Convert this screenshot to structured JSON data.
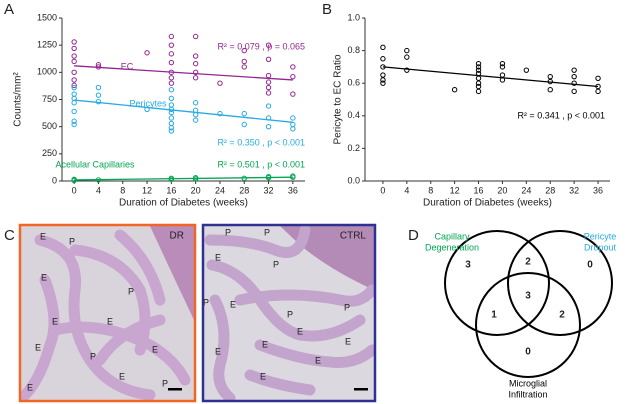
{
  "panels": [
    "A",
    "B",
    "C",
    "D"
  ],
  "chart_data": [
    {
      "type": "scatter",
      "xlabel": "Duration of Diabetes (weeks)",
      "ylabel": "Counts/mm²",
      "xlim": [
        -2,
        38
      ],
      "ylim": [
        0,
        1500
      ],
      "xticks": [
        0,
        4,
        8,
        12,
        16,
        20,
        24,
        28,
        32,
        36
      ],
      "yticks": [
        0,
        250,
        500,
        750,
        1000,
        1250,
        1500
      ],
      "series": [
        {
          "name": "EC",
          "color": "#92278f",
          "stat": "R² = 0.079 , p = 0.065",
          "x": [
            0,
            0,
            0,
            0,
            0,
            0,
            0,
            4,
            4,
            12,
            16,
            16,
            16,
            16,
            16,
            16,
            16,
            20,
            20,
            20,
            20,
            20,
            24,
            28,
            28,
            28,
            32,
            32,
            32,
            32,
            32,
            32,
            36,
            36,
            36
          ],
          "values": [
            1280,
            1220,
            1150,
            1100,
            1000,
            930,
            880,
            1070,
            1050,
            1180,
            1330,
            1250,
            1170,
            1090,
            1000,
            950,
            900,
            1330,
            1150,
            1080,
            1000,
            950,
            900,
            1200,
            1100,
            1050,
            1250,
            1120,
            970,
            910,
            860,
            810,
            1050,
            960,
            800
          ],
          "trend": {
            "x": [
              0,
              36
            ],
            "values": [
              1060,
              930
            ]
          }
        },
        {
          "name": "Pericytes",
          "color": "#27aae1",
          "stat": "R² = 0.350 , p < 0.001",
          "x": [
            0,
            0,
            0,
            0,
            0,
            0,
            0,
            4,
            4,
            4,
            12,
            16,
            16,
            16,
            16,
            16,
            16,
            16,
            16,
            16,
            20,
            20,
            20,
            20,
            24,
            28,
            28,
            32,
            32,
            32,
            36,
            36,
            36
          ],
          "values": [
            860,
            800,
            760,
            720,
            640,
            550,
            520,
            860,
            790,
            730,
            660,
            840,
            760,
            700,
            660,
            630,
            580,
            530,
            490,
            460,
            720,
            650,
            610,
            560,
            620,
            620,
            520,
            690,
            580,
            500,
            580,
            520,
            480
          ],
          "trend": {
            "x": [
              0,
              36
            ],
            "values": [
              745,
              540
            ]
          }
        },
        {
          "name": "Acellular Capillaries",
          "color": "#00a651",
          "stat": "R² = 0.501 , p < 0.001",
          "x": [
            0,
            0,
            0,
            4,
            16,
            16,
            20,
            20,
            28,
            32,
            32,
            36,
            36
          ],
          "values": [
            5,
            10,
            15,
            10,
            15,
            25,
            20,
            30,
            25,
            30,
            40,
            35,
            45
          ],
          "trend": {
            "x": [
              0,
              36
            ],
            "values": [
              10,
              35
            ]
          }
        }
      ]
    },
    {
      "type": "scatter",
      "xlabel": "Duration of Diabetes (weeks)",
      "ylabel": "Pericyte to EC Ratio",
      "xlim": [
        -3,
        38
      ],
      "ylim": [
        0,
        1.0
      ],
      "xticks": [
        0,
        4,
        8,
        12,
        16,
        20,
        24,
        28,
        32,
        36
      ],
      "yticks": [
        {
          "value": 0,
          "label": "0.0"
        },
        0.2,
        0.4,
        0.6,
        0.8,
        {
          "value": 1,
          "label": "1.0"
        }
      ],
      "series": [
        {
          "color": "#000000",
          "stat": "R² = 0.341 , p < 0.001",
          "x": [
            0,
            0,
            0,
            0,
            0,
            0,
            4,
            4,
            4,
            12,
            16,
            16,
            16,
            16,
            16,
            16,
            16,
            16,
            20,
            20,
            20,
            20,
            24,
            28,
            28,
            28,
            32,
            32,
            32,
            32,
            36,
            36,
            36
          ],
          "values": [
            0.82,
            0.75,
            0.7,
            0.65,
            0.62,
            0.6,
            0.8,
            0.76,
            0.68,
            0.56,
            0.72,
            0.7,
            0.68,
            0.66,
            0.63,
            0.6,
            0.58,
            0.55,
            0.72,
            0.7,
            0.65,
            0.62,
            0.68,
            0.64,
            0.61,
            0.56,
            0.68,
            0.64,
            0.6,
            0.55,
            0.63,
            0.58,
            0.55
          ],
          "trend": {
            "x": [
              0,
              36
            ],
            "values": [
              0.7,
              0.58
            ]
          }
        }
      ]
    }
  ],
  "micrographs": {
    "dr": {
      "tag": "DR",
      "labels": [
        "E",
        "P",
        "E",
        "P",
        "E",
        "E",
        "E",
        "P",
        "E",
        "E",
        "P",
        "E"
      ]
    },
    "ctrl": {
      "tag": "CTRL",
      "labels": [
        "P",
        "P",
        "E",
        "P",
        "P",
        "E",
        "P",
        "E",
        "E",
        "E",
        "P",
        "E",
        "E",
        "E"
      ]
    }
  },
  "venn": {
    "sets": [
      {
        "label": [
          "Capillary",
          "Degeneration"
        ],
        "color": "#00a651"
      },
      {
        "label": [
          "Pericyte",
          "Dropout"
        ],
        "color": "#27aae1"
      },
      {
        "label": [
          "Microglial",
          "Infiltration"
        ],
        "color": "#000000"
      }
    ],
    "regions": [
      3,
      2,
      0,
      3,
      1,
      2,
      0
    ]
  }
}
